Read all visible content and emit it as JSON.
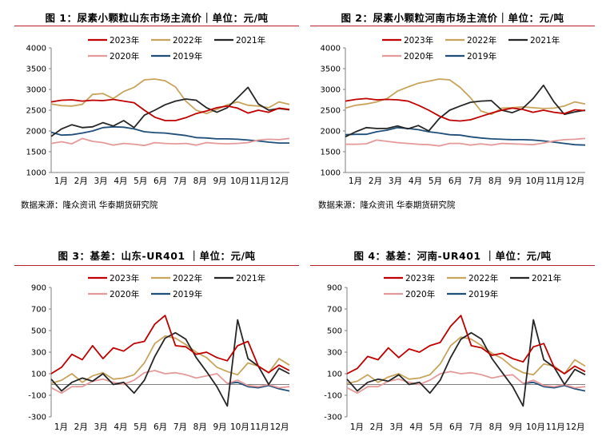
{
  "colors": {
    "2023": "#c00000",
    "2022": "#c8a45c",
    "2021": "#262626",
    "2020": "#e59a9a",
    "2019": "#1f4e79",
    "rule": "#b8202c"
  },
  "months": [
    "1月",
    "2月",
    "3月",
    "4月",
    "5月",
    "6月",
    "7月",
    "8月",
    "9月",
    "10月",
    "11月",
    "12月"
  ],
  "legend": [
    "2023年",
    "2022年",
    "2021年",
    "2020年",
    "2019年"
  ],
  "chart_data": [
    {
      "type": "line",
      "title": "图 1：尿素小颗粒山东市场主流价｜单位：元/吨",
      "source": "数据来源：隆众资讯 华泰期货研究院",
      "ylim": [
        1000,
        4000
      ],
      "yticks": [
        1000,
        1500,
        2000,
        2500,
        3000,
        3500,
        4000
      ],
      "series": [
        {
          "name": "2023年",
          "key": "2023",
          "values": [
            2700,
            2740,
            2750,
            2720,
            2740,
            2730,
            2760,
            2720,
            2680,
            2500,
            2330,
            2250,
            2250,
            2320,
            2420,
            2480,
            2560,
            2600,
            2550,
            2430,
            2500,
            2450,
            2550,
            2520
          ]
        },
        {
          "name": "2022年",
          "key": "2022",
          "values": [
            2650,
            2610,
            2600,
            2640,
            2880,
            2900,
            2780,
            2950,
            3050,
            3230,
            3250,
            3210,
            3060,
            2720,
            2500,
            2420,
            2520,
            2630,
            2700,
            2620,
            2600,
            2560,
            2700,
            2640
          ]
        },
        {
          "name": "2021年",
          "key": "2021",
          "values": [
            1870,
            2050,
            2150,
            2080,
            2100,
            2200,
            2120,
            2250,
            2080,
            2380,
            2500,
            2630,
            2720,
            2770,
            2740,
            2560,
            2450,
            2560,
            2800,
            3050,
            2650,
            2500,
            2540,
            2510
          ]
        },
        {
          "name": "2020年",
          "key": "2020",
          "values": [
            1700,
            1740,
            1690,
            1820,
            1750,
            1720,
            1660,
            1700,
            1680,
            1650,
            1720,
            1700,
            1690,
            1700,
            1660,
            1720,
            1700,
            1690,
            1700,
            1720,
            1780,
            1800,
            1790,
            1820
          ]
        },
        {
          "name": "2019年",
          "key": "2019",
          "values": [
            1970,
            1900,
            1910,
            1950,
            2000,
            2080,
            2100,
            2090,
            2050,
            1980,
            1960,
            1950,
            1920,
            1890,
            1840,
            1830,
            1810,
            1810,
            1800,
            1780,
            1760,
            1730,
            1710,
            1710
          ]
        }
      ]
    },
    {
      "type": "line",
      "title": "图 2：尿素小颗粒河南市场主流价｜单位：元/吨",
      "source": "数据来源：隆众资讯 华泰期货研究院",
      "ylim": [
        1000,
        4000
      ],
      "yticks": [
        1000,
        1500,
        2000,
        2500,
        3000,
        3500,
        4000
      ],
      "series": [
        {
          "name": "2023年",
          "key": "2023",
          "values": [
            2720,
            2760,
            2780,
            2750,
            2760,
            2750,
            2720,
            2620,
            2500,
            2360,
            2260,
            2240,
            2270,
            2350,
            2430,
            2500,
            2550,
            2520,
            2450,
            2500,
            2450,
            2420,
            2510,
            2490
          ]
        },
        {
          "name": "2022年",
          "key": "2022",
          "values": [
            2550,
            2620,
            2650,
            2700,
            2780,
            2960,
            3060,
            3150,
            3200,
            3250,
            3230,
            3050,
            2800,
            2480,
            2400,
            2550,
            2560,
            2580,
            2560,
            2540,
            2550,
            2600,
            2700,
            2650
          ]
        },
        {
          "name": "2021年",
          "key": "2021",
          "values": [
            1860,
            1980,
            2080,
            2060,
            2060,
            2120,
            2050,
            2130,
            2000,
            2300,
            2500,
            2600,
            2690,
            2720,
            2730,
            2500,
            2440,
            2540,
            2780,
            3100,
            2700,
            2400,
            2460,
            2500
          ]
        },
        {
          "name": "2020年",
          "key": "2020",
          "values": [
            1680,
            1680,
            1690,
            1780,
            1750,
            1720,
            1700,
            1680,
            1670,
            1640,
            1700,
            1700,
            1660,
            1690,
            1660,
            1700,
            1690,
            1680,
            1670,
            1710,
            1760,
            1790,
            1800,
            1820
          ]
        },
        {
          "name": "2019年",
          "key": "2019",
          "values": [
            1910,
            1920,
            1920,
            1980,
            2020,
            2080,
            2060,
            2030,
            1980,
            1950,
            1910,
            1900,
            1860,
            1830,
            1810,
            1800,
            1790,
            1790,
            1780,
            1760,
            1730,
            1700,
            1670,
            1660
          ]
        }
      ]
    },
    {
      "type": "line",
      "title": "图 3：基差：山东-UR401 ｜单位：元/吨",
      "ylim": [
        -300,
        900
      ],
      "yticks": [
        -300,
        -100,
        100,
        300,
        500,
        700,
        900
      ],
      "series": [
        {
          "name": "2023年",
          "key": "2023",
          "values": [
            100,
            160,
            280,
            230,
            360,
            240,
            340,
            310,
            380,
            400,
            560,
            640,
            360,
            350,
            280,
            300,
            250,
            220,
            360,
            400,
            170,
            110,
            180,
            130
          ]
        },
        {
          "name": "2022年",
          "key": "2022",
          "values": [
            10,
            40,
            100,
            20,
            80,
            110,
            50,
            60,
            90,
            200,
            380,
            450,
            430,
            370,
            300,
            250,
            160,
            120,
            90,
            200,
            170,
            110,
            240,
            180
          ]
        },
        {
          "name": "2021年",
          "key": "2021",
          "values": [
            50,
            -60,
            20,
            60,
            30,
            100,
            0,
            20,
            -80,
            40,
            260,
            430,
            480,
            420,
            250,
            120,
            -20,
            -200,
            600,
            240,
            170,
            0,
            150,
            100
          ]
        },
        {
          "name": "2020年",
          "key": "2020",
          "values": [
            -30,
            -80,
            -20,
            -20,
            30,
            50,
            20,
            0,
            40,
            110,
            130,
            100,
            110,
            90,
            60,
            80,
            100,
            10,
            40,
            -10,
            -20,
            0,
            -30,
            -20
          ]
        },
        {
          "name": "2019年",
          "key": "2019",
          "values": [
            null,
            null,
            null,
            null,
            null,
            null,
            null,
            null,
            null,
            null,
            null,
            null,
            null,
            null,
            null,
            null,
            null,
            10,
            20,
            -20,
            -30,
            -10,
            -40,
            -60
          ]
        }
      ]
    },
    {
      "type": "line",
      "title": "图 4：基差：河南-UR401 ｜单位：元/吨",
      "ylim": [
        -300,
        900
      ],
      "yticks": [
        -300,
        -100,
        100,
        300,
        500,
        700,
        900
      ],
      "series": [
        {
          "name": "2023年",
          "key": "2023",
          "values": [
            100,
            150,
            260,
            230,
            340,
            250,
            330,
            300,
            360,
            390,
            540,
            640,
            360,
            340,
            270,
            290,
            240,
            210,
            350,
            380,
            160,
            100,
            170,
            120
          ]
        },
        {
          "name": "2022年",
          "key": "2022",
          "values": [
            10,
            30,
            90,
            20,
            70,
            100,
            50,
            60,
            90,
            190,
            360,
            440,
            420,
            360,
            290,
            240,
            160,
            110,
            90,
            190,
            170,
            100,
            230,
            170
          ]
        },
        {
          "name": "2021年",
          "key": "2021",
          "values": [
            50,
            -60,
            20,
            50,
            30,
            90,
            0,
            20,
            -80,
            40,
            250,
            420,
            480,
            420,
            240,
            110,
            -20,
            -200,
            600,
            230,
            160,
            0,
            140,
            90
          ]
        },
        {
          "name": "2020年",
          "key": "2020",
          "values": [
            -30,
            -80,
            -20,
            -20,
            30,
            50,
            20,
            0,
            40,
            100,
            120,
            100,
            110,
            90,
            60,
            80,
            90,
            10,
            40,
            -10,
            -20,
            0,
            -30,
            -20
          ]
        },
        {
          "name": "2019年",
          "key": "2019",
          "values": [
            null,
            null,
            null,
            null,
            null,
            null,
            null,
            null,
            null,
            null,
            null,
            null,
            null,
            null,
            null,
            null,
            null,
            10,
            20,
            -20,
            -30,
            -10,
            -40,
            -60
          ]
        }
      ]
    }
  ]
}
